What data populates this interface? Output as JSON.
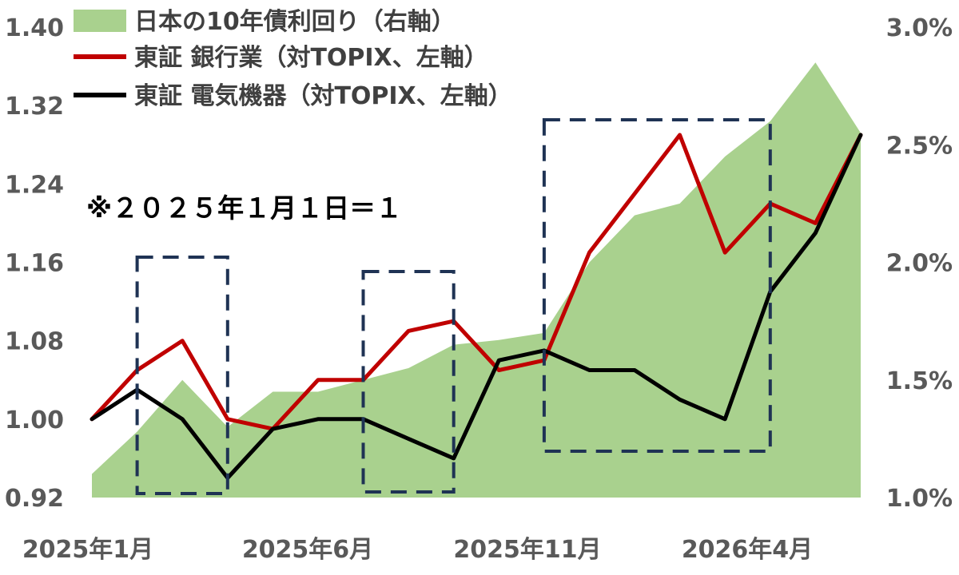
{
  "chart_data": {
    "type": "line",
    "note": "※２０２５年１月１日＝１",
    "x_tick_labels": [
      "2025年1月",
      "2025年6月",
      "2025年11月",
      "2026年4月"
    ],
    "x_range": [
      "2025-01",
      "2026-06"
    ],
    "left_axis": {
      "ticks": [
        "0.92",
        "1.00",
        "1.08",
        "1.16",
        "1.24",
        "1.32",
        "1.40"
      ],
      "range": [
        0.92,
        1.4
      ]
    },
    "right_axis": {
      "ticks": [
        "1.0%",
        "1.5%",
        "2.0%",
        "2.5%",
        "3.0%"
      ],
      "range": [
        1.0,
        3.0
      ]
    },
    "legend": [
      {
        "label": "日本の10年債利回り（右軸）",
        "color": "#a9d18e",
        "kind": "area"
      },
      {
        "label": "東証 銀行業（対TOPIX、左軸）",
        "color": "#c00000",
        "kind": "line"
      },
      {
        "label": "東証 電気機器（対TOPIX、左軸）",
        "color": "#000000",
        "kind": "line"
      }
    ],
    "grid": false,
    "legend_position": "top-left",
    "series": [
      {
        "name": "日本の10年債利回り（右軸）",
        "axis": "right",
        "x": [
          "2025-01",
          "2025-02",
          "2025-03",
          "2025-04",
          "2025-05",
          "2025-06",
          "2025-07",
          "2025-08",
          "2025-09",
          "2025-10",
          "2025-11",
          "2025-12",
          "2026-01",
          "2026-02",
          "2026-03",
          "2026-04",
          "2026-05",
          "2026-06"
        ],
        "values": [
          1.1,
          1.28,
          1.5,
          1.3,
          1.45,
          1.45,
          1.5,
          1.55,
          1.65,
          1.67,
          1.7,
          2.0,
          2.2,
          2.25,
          2.45,
          2.6,
          2.85,
          2.55
        ]
      },
      {
        "name": "東証 銀行業（対TOPIX、左軸）",
        "axis": "left",
        "x": [
          "2025-01",
          "2025-02",
          "2025-03",
          "2025-04",
          "2025-05",
          "2025-06",
          "2025-07",
          "2025-08",
          "2025-09",
          "2025-10",
          "2025-11",
          "2025-12",
          "2026-01",
          "2026-02",
          "2026-03",
          "2026-04",
          "2026-05",
          "2026-06"
        ],
        "values": [
          1.0,
          1.05,
          1.08,
          1.0,
          0.99,
          1.04,
          1.04,
          1.09,
          1.1,
          1.05,
          1.06,
          1.17,
          1.23,
          1.29,
          1.17,
          1.22,
          1.2,
          1.29
        ]
      },
      {
        "name": "東証 電気機器（対TOPIX、左軸）",
        "axis": "left",
        "x": [
          "2025-01",
          "2025-02",
          "2025-03",
          "2025-04",
          "2025-05",
          "2025-06",
          "2025-07",
          "2025-08",
          "2025-09",
          "2025-10",
          "2025-11",
          "2025-12",
          "2026-01",
          "2026-02",
          "2026-03",
          "2026-04",
          "2026-05",
          "2026-06"
        ],
        "values": [
          1.0,
          1.03,
          1.0,
          0.94,
          0.99,
          1.0,
          1.0,
          0.98,
          0.96,
          1.06,
          1.07,
          1.05,
          1.05,
          1.02,
          1.0,
          1.13,
          1.19,
          1.29
        ]
      }
    ],
    "highlight_ranges": [
      [
        "2025-02",
        "2025-04"
      ],
      [
        "2025-07",
        "2025-09"
      ],
      [
        "2025-11",
        "2026-04"
      ]
    ]
  }
}
